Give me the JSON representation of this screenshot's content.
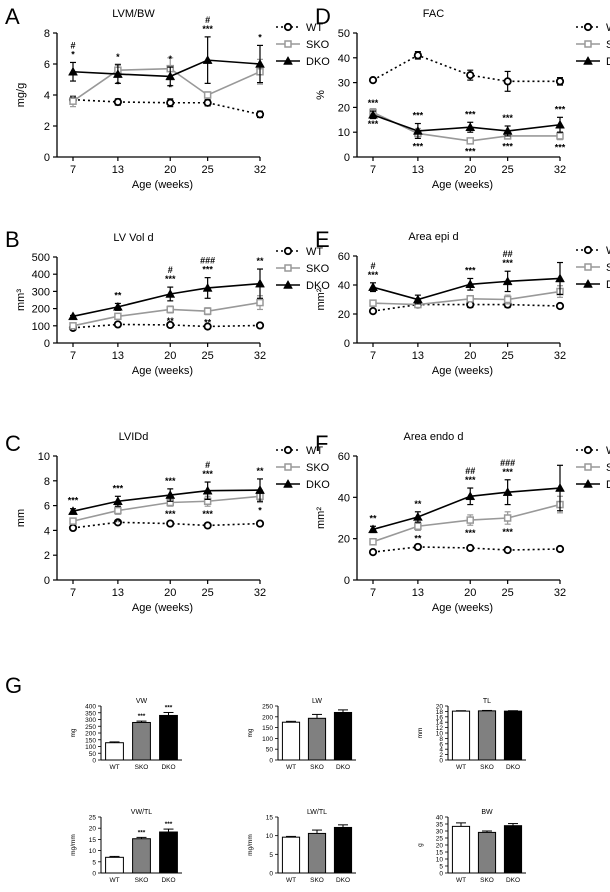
{
  "panel_letters": [
    "A",
    "B",
    "C",
    "D",
    "E",
    "F",
    "G"
  ],
  "chart_data": [
    {
      "id": "A",
      "type": "line",
      "title": "LVM/BW",
      "xlabel": "Age (weeks)",
      "ylabel": "mg/g",
      "x": [
        7,
        13,
        20,
        25,
        32
      ],
      "ylim": [
        0,
        8
      ],
      "yticks": [
        0,
        2,
        4,
        6,
        8
      ],
      "series": [
        {
          "name": "WT",
          "style": "dotted",
          "marker": "circle-open",
          "color": "#000000",
          "values": [
            3.7,
            3.55,
            3.5,
            3.5,
            2.75
          ],
          "err": [
            0.2,
            0.2,
            0.25,
            0.2,
            0.2
          ]
        },
        {
          "name": "SKO",
          "style": "solid",
          "marker": "square-open",
          "color": "#999999",
          "values": [
            3.6,
            5.6,
            5.7,
            4.0,
            5.5
          ],
          "err": [
            0.35,
            0.4,
            0.7,
            0.2,
            0.8
          ]
        },
        {
          "name": "DKO",
          "style": "solid",
          "marker": "triangle",
          "color": "#000000",
          "values": [
            5.5,
            5.35,
            5.2,
            6.25,
            6.0
          ],
          "err": [
            0.6,
            0.6,
            0.6,
            1.5,
            1.2
          ]
        }
      ],
      "annotations": [
        {
          "x": 7,
          "labels": [
            "#",
            "*"
          ]
        },
        {
          "x": 13,
          "labels": [
            "*"
          ]
        },
        {
          "x": 20,
          "labels": [
            "*"
          ]
        },
        {
          "x": 25,
          "labels": [
            "#",
            "***"
          ]
        },
        {
          "x": 32,
          "labels": [
            "*"
          ]
        }
      ],
      "below_annotations": [
        {
          "x": 13,
          "labels": [
            "*"
          ]
        },
        {
          "x": 20,
          "labels": [
            "*"
          ]
        }
      ]
    },
    {
      "id": "B",
      "type": "line",
      "title": "LV Vol d",
      "xlabel": "Age (weeks)",
      "ylabel": "mm³",
      "x": [
        7,
        13,
        20,
        25,
        32
      ],
      "ylim": [
        0,
        500
      ],
      "yticks": [
        0,
        100,
        200,
        300,
        400,
        500
      ],
      "series": [
        {
          "name": "WT",
          "style": "dotted",
          "marker": "circle-open",
          "color": "#000000",
          "values": [
            88,
            108,
            105,
            96,
            102
          ],
          "err": [
            5,
            5,
            5,
            5,
            5
          ]
        },
        {
          "name": "SKO",
          "style": "solid",
          "marker": "square-open",
          "color": "#999999",
          "values": [
            100,
            155,
            195,
            185,
            235
          ],
          "err": [
            5,
            10,
            20,
            20,
            40
          ]
        },
        {
          "name": "DKO",
          "style": "solid",
          "marker": "triangle",
          "color": "#000000",
          "values": [
            155,
            210,
            285,
            320,
            345
          ],
          "err": [
            5,
            20,
            40,
            60,
            85
          ]
        }
      ],
      "annotations": [
        {
          "x": 13,
          "labels": [
            "**"
          ]
        },
        {
          "x": 20,
          "labels": [
            "#",
            "***"
          ]
        },
        {
          "x": 25,
          "labels": [
            "###",
            "***"
          ]
        },
        {
          "x": 32,
          "labels": [
            "**"
          ]
        }
      ],
      "below_annotations": [
        {
          "x": 20,
          "labels": [
            "**"
          ]
        },
        {
          "x": 25,
          "labels": [
            "**"
          ]
        }
      ]
    },
    {
      "id": "C",
      "type": "line",
      "title": "LVIDd",
      "xlabel": "Age (weeks)",
      "ylabel": "mm",
      "x": [
        7,
        13,
        20,
        25,
        32
      ],
      "ylim": [
        0,
        10
      ],
      "yticks": [
        0,
        2,
        4,
        6,
        8,
        10
      ],
      "series": [
        {
          "name": "WT",
          "style": "dotted",
          "marker": "circle-open",
          "color": "#000000",
          "values": [
            4.2,
            4.65,
            4.55,
            4.4,
            4.55
          ],
          "err": [
            0.1,
            0.1,
            0.1,
            0.1,
            0.1
          ]
        },
        {
          "name": "SKO",
          "style": "solid",
          "marker": "square-open",
          "color": "#999999",
          "values": [
            4.75,
            5.6,
            6.25,
            6.35,
            6.75
          ],
          "err": [
            0.2,
            0.3,
            0.3,
            0.4,
            0.5
          ]
        },
        {
          "name": "DKO",
          "style": "solid",
          "marker": "triangle",
          "color": "#000000",
          "values": [
            5.55,
            6.35,
            6.85,
            7.2,
            7.25
          ],
          "err": [
            0.2,
            0.4,
            0.5,
            0.7,
            0.9
          ]
        }
      ],
      "annotations": [
        {
          "x": 7,
          "labels": [
            "***"
          ]
        },
        {
          "x": 13,
          "labels": [
            "***"
          ]
        },
        {
          "x": 20,
          "labels": [
            "***"
          ]
        },
        {
          "x": 25,
          "labels": [
            "#",
            "***"
          ]
        },
        {
          "x": 32,
          "labels": [
            "**"
          ]
        }
      ],
      "below_annotations": [
        {
          "x": 13,
          "labels": [
            "**"
          ]
        },
        {
          "x": 20,
          "labels": [
            "***"
          ]
        },
        {
          "x": 25,
          "labels": [
            "***"
          ]
        },
        {
          "x": 32,
          "labels": [
            "*"
          ]
        }
      ]
    },
    {
      "id": "D",
      "type": "line",
      "title": "FAC",
      "xlabel": "Age (weeks)",
      "ylabel": "%",
      "x": [
        7,
        13,
        20,
        25,
        32
      ],
      "ylim": [
        0,
        50
      ],
      "yticks": [
        0,
        10,
        20,
        30,
        40,
        50
      ],
      "series": [
        {
          "name": "WT",
          "style": "dotted",
          "marker": "circle-open",
          "color": "#000000",
          "values": [
            31,
            41,
            33,
            30.5,
            30.5
          ],
          "err": [
            0.7,
            1.5,
            2,
            4,
            1.5
          ]
        },
        {
          "name": "SKO",
          "style": "solid",
          "marker": "square-open",
          "color": "#999999",
          "values": [
            18,
            9.5,
            6.5,
            8.5,
            8.5
          ],
          "err": [
            1.5,
            2,
            1,
            1,
            1.5
          ]
        },
        {
          "name": "DKO",
          "style": "solid",
          "marker": "triangle",
          "color": "#000000",
          "values": [
            17,
            10.5,
            12,
            10.5,
            13
          ],
          "err": [
            1.5,
            3,
            2,
            2,
            3
          ]
        }
      ],
      "annotations": [
        {
          "x": 7,
          "labels": [
            "***"
          ]
        },
        {
          "x": 13,
          "labels": [
            "***"
          ]
        },
        {
          "x": 20,
          "labels": [
            "***"
          ]
        },
        {
          "x": 25,
          "labels": [
            "***"
          ]
        },
        {
          "x": 32,
          "labels": [
            "***"
          ]
        }
      ],
      "below_annotations": [
        {
          "x": 7,
          "labels": [
            "***"
          ]
        },
        {
          "x": 13,
          "labels": [
            "***"
          ]
        },
        {
          "x": 20,
          "labels": [
            "***"
          ]
        },
        {
          "x": 25,
          "labels": [
            "***"
          ]
        },
        {
          "x": 32,
          "labels": [
            "***"
          ]
        }
      ]
    },
    {
      "id": "E",
      "type": "line",
      "title": "Area epi d",
      "xlabel": "Age (weeks)",
      "ylabel": "mm²",
      "x": [
        7,
        13,
        20,
        25,
        32
      ],
      "ylim": [
        0,
        60
      ],
      "yticks": [
        0,
        20,
        40,
        60
      ],
      "series": [
        {
          "name": "WT",
          "style": "dotted",
          "marker": "circle-open",
          "color": "#000000",
          "values": [
            22,
            26.5,
            26.5,
            26.5,
            25.5
          ],
          "err": [
            1,
            1,
            2,
            2,
            1
          ]
        },
        {
          "name": "SKO",
          "style": "solid",
          "marker": "square-open",
          "color": "#999999",
          "values": [
            27.5,
            26.5,
            30.5,
            30,
            35.5
          ],
          "err": [
            2,
            2,
            2,
            3,
            4
          ]
        },
        {
          "name": "DKO",
          "style": "solid",
          "marker": "triangle",
          "color": "#000000",
          "values": [
            38.5,
            30,
            40.5,
            42.5,
            44.5
          ],
          "err": [
            3,
            3,
            4,
            7,
            11
          ]
        }
      ],
      "annotations": [
        {
          "x": 7,
          "labels": [
            "#",
            "***"
          ]
        },
        {
          "x": 20,
          "labels": [
            "***"
          ]
        },
        {
          "x": 25,
          "labels": [
            "##",
            "***"
          ]
        }
      ],
      "below_annotations": []
    },
    {
      "id": "F",
      "type": "line",
      "title": "Area endo d",
      "xlabel": "Age (weeks)",
      "ylabel": "mm²",
      "x": [
        7,
        13,
        20,
        25,
        32
      ],
      "ylim": [
        0,
        60
      ],
      "yticks": [
        0,
        20,
        40,
        60
      ],
      "series": [
        {
          "name": "WT",
          "style": "dotted",
          "marker": "circle-open",
          "color": "#000000",
          "values": [
            13.5,
            16,
            15.5,
            14.5,
            15
          ],
          "err": [
            0.5,
            0.5,
            0.5,
            0.5,
            0.5
          ]
        },
        {
          "name": "SKO",
          "style": "solid",
          "marker": "square-open",
          "color": "#999999",
          "values": [
            18.5,
            26,
            29,
            30,
            36.5
          ],
          "err": [
            1.5,
            2,
            2.5,
            3,
            4
          ]
        },
        {
          "name": "DKO",
          "style": "solid",
          "marker": "triangle",
          "color": "#000000",
          "values": [
            24.5,
            30.5,
            40.5,
            42.5,
            44.5
          ],
          "err": [
            1.5,
            2.5,
            4,
            6,
            11
          ]
        }
      ],
      "annotations": [
        {
          "x": 7,
          "labels": [
            "**"
          ]
        },
        {
          "x": 13,
          "labels": [
            "**"
          ]
        },
        {
          "x": 20,
          "labels": [
            "##",
            "***"
          ]
        },
        {
          "x": 25,
          "labels": [
            "###",
            "***"
          ]
        }
      ],
      "below_annotations": [
        {
          "x": 13,
          "labels": [
            "**"
          ]
        },
        {
          "x": 20,
          "labels": [
            "***"
          ]
        },
        {
          "x": 25,
          "labels": [
            "***"
          ]
        }
      ]
    },
    {
      "id": "G1",
      "type": "bar",
      "title": "VW",
      "ylabel": "mg",
      "categories": [
        "WT",
        "SKO",
        "DKO"
      ],
      "ylim": [
        0,
        400
      ],
      "yticks": [
        0,
        50,
        100,
        150,
        200,
        250,
        300,
        350,
        400
      ],
      "values": [
        128,
        278,
        330
      ],
      "err": [
        6,
        10,
        22
      ],
      "fills": [
        "#ffffff",
        "#808080",
        "#000000"
      ],
      "annotations": [
        "",
        "***",
        "***"
      ]
    },
    {
      "id": "G2",
      "type": "bar",
      "title": "LW",
      "ylabel": "mg",
      "categories": [
        "WT",
        "SKO",
        "DKO"
      ],
      "ylim": [
        0,
        250
      ],
      "yticks": [
        0,
        50,
        100,
        150,
        200,
        250
      ],
      "values": [
        175,
        193,
        220
      ],
      "err": [
        4,
        18,
        12
      ],
      "fills": [
        "#ffffff",
        "#808080",
        "#000000"
      ],
      "annotations": [
        "",
        "",
        ""
      ]
    },
    {
      "id": "G3",
      "type": "bar",
      "title": "TL",
      "ylabel": "mm",
      "categories": [
        "WT",
        "SKO",
        "DKO"
      ],
      "ylim": [
        0,
        20
      ],
      "yticks": [
        0,
        2,
        4,
        6,
        8,
        10,
        12,
        14,
        16,
        18,
        20
      ],
      "values": [
        18.1,
        18.2,
        18.1
      ],
      "err": [
        0.15,
        0.15,
        0.15
      ],
      "fills": [
        "#ffffff",
        "#808080",
        "#000000"
      ],
      "annotations": [
        "",
        "",
        ""
      ]
    },
    {
      "id": "G4",
      "type": "bar",
      "title": "VW/TL",
      "ylabel": "mg/mm",
      "categories": [
        "WT",
        "SKO",
        "DKO"
      ],
      "ylim": [
        0,
        25
      ],
      "yticks": [
        0,
        5,
        10,
        15,
        20,
        25
      ],
      "values": [
        7,
        15.3,
        18.3
      ],
      "err": [
        0.4,
        0.6,
        1.3
      ],
      "fills": [
        "#ffffff",
        "#808080",
        "#000000"
      ],
      "annotations": [
        "",
        "***",
        "***"
      ]
    },
    {
      "id": "G5",
      "type": "bar",
      "title": "LW/TL",
      "ylabel": "mg/mm",
      "categories": [
        "WT",
        "SKO",
        "DKO"
      ],
      "ylim": [
        0,
        15
      ],
      "yticks": [
        0,
        5,
        10,
        15
      ],
      "values": [
        9.6,
        10.6,
        12.2
      ],
      "err": [
        0.2,
        0.9,
        0.7
      ],
      "fills": [
        "#ffffff",
        "#808080",
        "#000000"
      ],
      "annotations": [
        "",
        "",
        ""
      ]
    },
    {
      "id": "G6",
      "type": "bar",
      "title": "BW",
      "ylabel": "g",
      "categories": [
        "WT",
        "SKO",
        "DKO"
      ],
      "ylim": [
        0,
        40
      ],
      "yticks": [
        0,
        5,
        10,
        15,
        20,
        25,
        30,
        35,
        40
      ],
      "values": [
        33.3,
        29,
        33.8
      ],
      "err": [
        2.5,
        1,
        1.5
      ],
      "fills": [
        "#ffffff",
        "#808080",
        "#000000"
      ],
      "annotations": [
        "",
        "",
        ""
      ]
    }
  ]
}
